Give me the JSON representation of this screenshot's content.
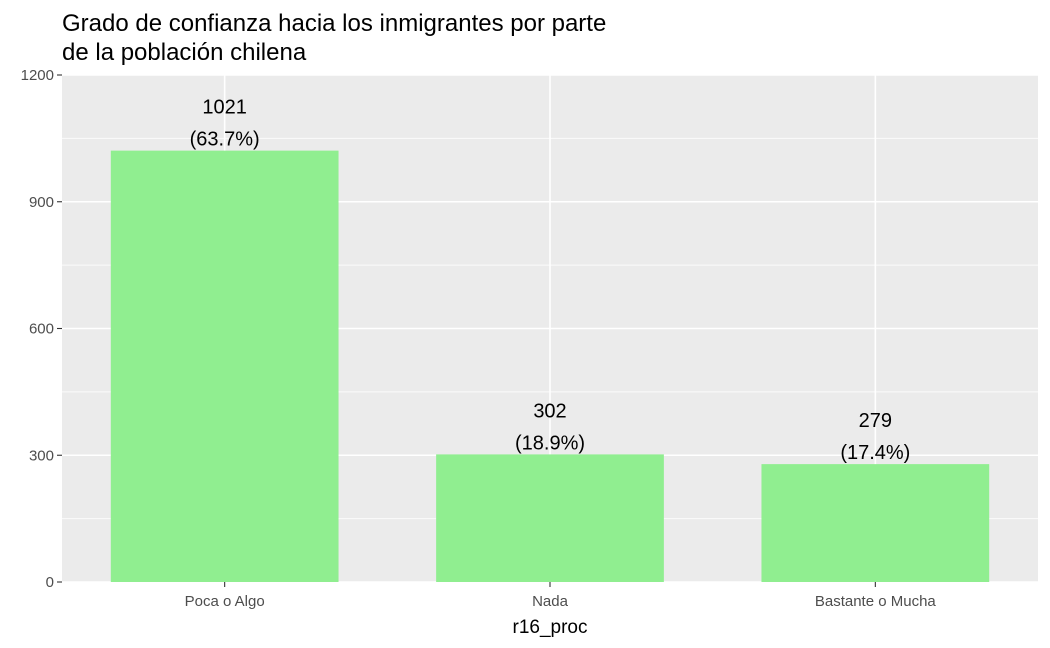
{
  "chart_data": {
    "type": "bar",
    "title_lines": [
      "Grado de confianza hacia los inmigrantes por parte",
      "de la población chilena"
    ],
    "xlabel": "r16_proc",
    "ylabel": "",
    "categories": [
      "Poca o Algo",
      "Nada",
      "Bastante o Mucha"
    ],
    "values": [
      1021,
      302,
      279
    ],
    "value_labels": [
      "1021",
      "302",
      "279"
    ],
    "percent_labels": [
      "(63.7%)",
      "(18.9%)",
      "(17.4%)"
    ],
    "ylim": [
      0,
      1200
    ],
    "yticks": [
      0,
      300,
      600,
      900,
      1200
    ],
    "grid": true,
    "legend": "none",
    "colors": {
      "bar": "#90ee90",
      "panel": "#ebebeb",
      "grid": "#ffffff"
    }
  }
}
